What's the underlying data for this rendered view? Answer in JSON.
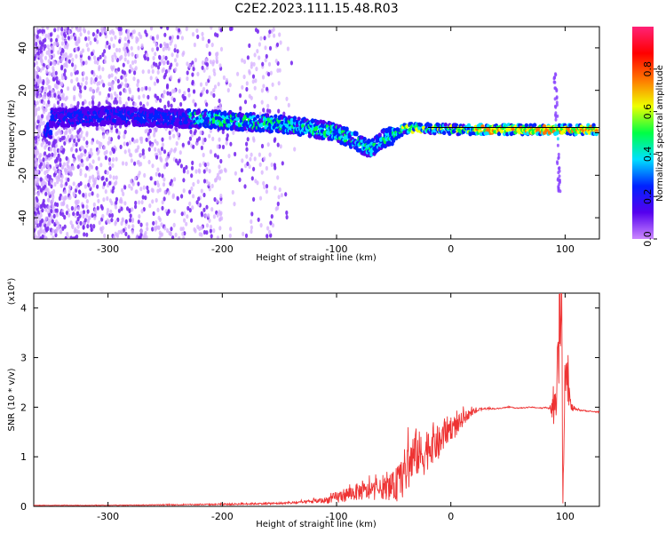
{
  "title": "C2E2.2023.111.15.48.R03",
  "chart_data": [
    {
      "type": "heatmap",
      "xlabel": "Height of straight line (km)",
      "ylabel": "Frequency (Hz)",
      "xlim": [
        -365,
        130
      ],
      "ylim": [
        -50,
        50
      ],
      "x_ticks": [
        -300,
        -200,
        -100,
        0,
        100
      ],
      "y_ticks": [
        -40,
        -20,
        0,
        20,
        40
      ],
      "colorbar": {
        "label": "Normalized spectral amplitude",
        "range": [
          0,
          1
        ],
        "ticks": [
          "0.0",
          "0.2",
          "0.4",
          "0.6",
          "0.8"
        ],
        "colors": [
          "#cc88ff",
          "#5500ee",
          "#0022ff",
          "#00e0ff",
          "#00ff44",
          "#eeff00",
          "#ff7700",
          "#ff0000",
          "#ff2277"
        ]
      },
      "ridge": [
        [
          -350,
          7
        ],
        [
          -300,
          8
        ],
        [
          -250,
          7
        ],
        [
          -200,
          6
        ],
        [
          -150,
          4
        ],
        [
          -120,
          2
        ],
        [
          -100,
          0
        ],
        [
          -90,
          -2
        ],
        [
          -80,
          -5
        ],
        [
          -70,
          -8
        ],
        [
          -60,
          -3
        ],
        [
          -50,
          -1
        ],
        [
          -40,
          2
        ],
        [
          -20,
          2
        ],
        [
          0,
          1.5
        ],
        [
          50,
          1.5
        ],
        [
          100,
          1.5
        ],
        [
          130,
          1.5
        ]
      ]
    },
    {
      "type": "line",
      "xlabel": "Height of straight line (km)",
      "ylabel": "SNR (10 * v/v)",
      "y_scale_note": "(x10⁴)",
      "xlim": [
        -365,
        130
      ],
      "ylim": [
        0,
        4.3
      ],
      "x_ticks": [
        -300,
        -200,
        -100,
        0,
        100
      ],
      "y_ticks": [
        0,
        1,
        2,
        3,
        4
      ],
      "color": "#ee3333",
      "series": [
        {
          "x": [
            -365,
            -300,
            -250,
            -200,
            -180,
            -150,
            -130,
            -110,
            -100,
            -90,
            -80,
            -70,
            -60,
            -50,
            -45,
            -40,
            -35,
            -30,
            -25,
            -20,
            -15,
            -10,
            -5,
            0,
            5,
            10,
            15,
            20,
            25,
            30,
            40,
            50,
            60,
            70,
            80,
            85,
            90,
            93,
            95,
            97,
            98,
            100,
            102,
            105,
            110,
            120,
            130
          ],
          "y": [
            0.02,
            0.02,
            0.03,
            0.04,
            0.05,
            0.06,
            0.08,
            0.12,
            0.18,
            0.25,
            0.3,
            0.3,
            0.35,
            0.4,
            0.5,
            0.7,
            0.9,
            1.1,
            1.0,
            1.2,
            1.3,
            1.25,
            1.5,
            1.6,
            1.6,
            1.75,
            1.85,
            1.9,
            1.95,
            1.97,
            1.97,
            2.0,
            1.98,
            2.0,
            1.98,
            2.0,
            1.95,
            2.5,
            3.5,
            4.3,
            0.1,
            3.0,
            2.6,
            2.0,
            1.95,
            1.92,
            1.9
          ],
          "noise": [
            0.005,
            0.005,
            0.01,
            0.015,
            0.02,
            0.02,
            0.03,
            0.06,
            0.12,
            0.15,
            0.18,
            0.18,
            0.2,
            0.3,
            0.4,
            0.5,
            0.55,
            0.5,
            0.45,
            0.45,
            0.4,
            0.35,
            0.3,
            0.25,
            0.22,
            0.15,
            0.1,
            0.06,
            0.03,
            0.02,
            0.01,
            0.01,
            0.01,
            0.01,
            0.01,
            0.02,
            0.3,
            0.6,
            0.9,
            0.5,
            0.2,
            0.6,
            0.5,
            0.1,
            0.02,
            0.01,
            0.01
          ]
        }
      ]
    }
  ]
}
